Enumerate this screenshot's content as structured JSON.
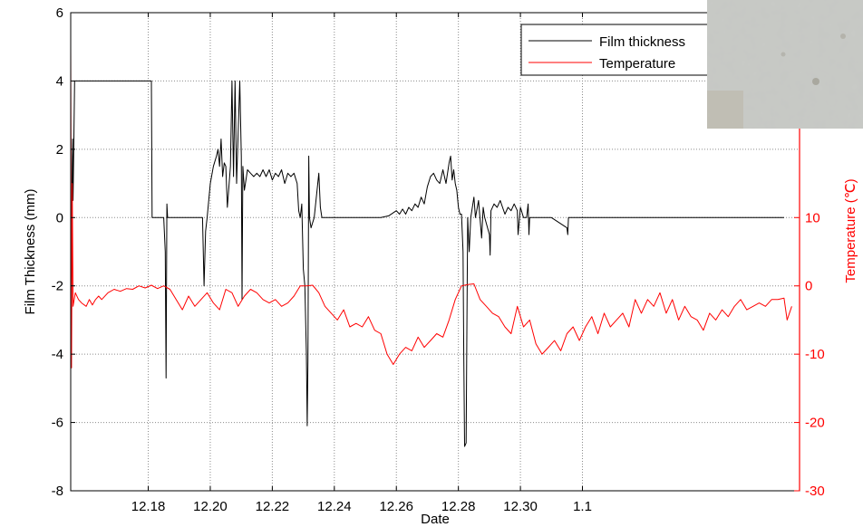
{
  "chart_data": {
    "type": "line",
    "xlabel": "Date",
    "ylabel_left": "Film Thickness (mm)",
    "ylabel_right": "Temperature (℃)",
    "x_ticks": [
      "12.18",
      "12.20",
      "12.22",
      "12.24",
      "12.26",
      "12.28",
      "12.30",
      "1.1"
    ],
    "y_left_ticks": [
      "6",
      "4",
      "2",
      "0",
      "-2",
      "-4",
      "-6",
      "-8"
    ],
    "y_right_ticks": [
      "10",
      "0",
      "-10",
      "-20",
      "-30"
    ],
    "y_left_range": [
      -8,
      6
    ],
    "y_right_range": [
      -30,
      40
    ],
    "grid": true,
    "legend": {
      "position": "top-right",
      "entries": [
        {
          "label": "Film thickness",
          "color": "#000000"
        },
        {
          "label": "Temperature",
          "color": "#ff0000"
        }
      ]
    },
    "series": [
      {
        "name": "Film thickness",
        "color": "#000000",
        "axis": "left",
        "points": [
          [
            0.0,
            0.5
          ],
          [
            0.05,
            -1
          ],
          [
            0.1,
            1.5
          ],
          [
            0.12,
            2.3
          ],
          [
            0.15,
            0.5
          ],
          [
            0.2,
            2.1
          ],
          [
            0.25,
            4
          ],
          [
            0.35,
            4
          ],
          [
            0.4,
            4
          ],
          [
            1.0,
            4
          ],
          [
            2.0,
            4
          ],
          [
            3.0,
            4
          ],
          [
            4.0,
            4
          ],
          [
            5.0,
            4
          ],
          [
            5.2,
            4
          ],
          [
            5.25,
            0
          ],
          [
            6.0,
            0
          ],
          [
            6.1,
            -1
          ],
          [
            6.15,
            -4.7
          ],
          [
            6.2,
            0.4
          ],
          [
            6.25,
            0
          ],
          [
            7.0,
            0
          ],
          [
            8.5,
            0
          ],
          [
            8.6,
            -2
          ],
          [
            8.7,
            -0.4
          ],
          [
            8.8,
            0
          ],
          [
            9.0,
            1
          ],
          [
            9.2,
            1.5
          ],
          [
            9.4,
            1.8
          ],
          [
            9.5,
            2
          ],
          [
            9.6,
            1.5
          ],
          [
            9.7,
            2.3
          ],
          [
            9.8,
            1.2
          ],
          [
            9.9,
            1.6
          ],
          [
            10.0,
            1.5
          ],
          [
            10.1,
            0.3
          ],
          [
            10.3,
            1.5
          ],
          [
            10.4,
            4
          ],
          [
            10.5,
            1.2
          ],
          [
            10.6,
            4
          ],
          [
            10.7,
            1
          ],
          [
            10.9,
            4
          ],
          [
            11.0,
            1.8
          ],
          [
            11.05,
            -2.4
          ],
          [
            11.1,
            1.5
          ],
          [
            11.2,
            0.8
          ],
          [
            11.4,
            1.4
          ],
          [
            11.6,
            1.3
          ],
          [
            11.8,
            1.2
          ],
          [
            12.0,
            1.3
          ],
          [
            12.2,
            1.2
          ],
          [
            12.4,
            1.4
          ],
          [
            12.6,
            1.2
          ],
          [
            12.8,
            1.4
          ],
          [
            13.0,
            1.1
          ],
          [
            13.2,
            1.3
          ],
          [
            13.4,
            1.2
          ],
          [
            13.6,
            1.4
          ],
          [
            13.8,
            1.0
          ],
          [
            14.0,
            1.3
          ],
          [
            14.2,
            1.2
          ],
          [
            14.4,
            1.3
          ],
          [
            14.6,
            1.0
          ],
          [
            14.7,
            0.2
          ],
          [
            14.8,
            0
          ],
          [
            14.9,
            0.4
          ],
          [
            15.0,
            -1.5
          ],
          [
            15.1,
            -2
          ],
          [
            15.2,
            -4
          ],
          [
            15.25,
            -6.1
          ],
          [
            15.3,
            -4.2
          ],
          [
            15.35,
            1.8
          ],
          [
            15.4,
            0
          ],
          [
            15.5,
            -0.3
          ],
          [
            15.7,
            0
          ],
          [
            16.0,
            1.3
          ],
          [
            16.1,
            0.3
          ],
          [
            16.2,
            0
          ],
          [
            17.0,
            0
          ],
          [
            18.0,
            0
          ],
          [
            19.0,
            0
          ],
          [
            20.0,
            0
          ],
          [
            20.5,
            0.05
          ],
          [
            21.0,
            0.2
          ],
          [
            21.2,
            0.1
          ],
          [
            21.4,
            0.25
          ],
          [
            21.6,
            0.1
          ],
          [
            21.8,
            0.3
          ],
          [
            22.0,
            0.2
          ],
          [
            22.2,
            0.4
          ],
          [
            22.4,
            0.3
          ],
          [
            22.6,
            0.6
          ],
          [
            22.8,
            0.4
          ],
          [
            23.0,
            0.9
          ],
          [
            23.2,
            1.2
          ],
          [
            23.4,
            1.3
          ],
          [
            23.6,
            1.1
          ],
          [
            23.8,
            1.0
          ],
          [
            24.0,
            1.4
          ],
          [
            24.2,
            1.0
          ],
          [
            24.4,
            1.6
          ],
          [
            24.5,
            1.8
          ],
          [
            24.6,
            1.1
          ],
          [
            24.7,
            1.4
          ],
          [
            24.8,
            1.0
          ],
          [
            24.9,
            0.8
          ],
          [
            25.0,
            0.3
          ],
          [
            25.1,
            0.1
          ],
          [
            25.2,
            0.1
          ],
          [
            25.3,
            -1
          ],
          [
            25.35,
            -4
          ],
          [
            25.4,
            -6.7
          ],
          [
            25.5,
            -6.6
          ],
          [
            25.55,
            -3
          ],
          [
            25.6,
            0
          ],
          [
            25.7,
            -1
          ],
          [
            25.8,
            0
          ],
          [
            26.0,
            0.6
          ],
          [
            26.1,
            0
          ],
          [
            26.3,
            0.5
          ],
          [
            26.5,
            -0.6
          ],
          [
            26.6,
            0.3
          ],
          [
            26.7,
            0
          ],
          [
            27.0,
            -0.5
          ],
          [
            27.05,
            -1.1
          ],
          [
            27.1,
            0.2
          ],
          [
            27.3,
            0.4
          ],
          [
            27.5,
            0.3
          ],
          [
            27.7,
            0.5
          ],
          [
            28.0,
            0.1
          ],
          [
            28.2,
            0.3
          ],
          [
            28.4,
            0.2
          ],
          [
            28.6,
            0.4
          ],
          [
            28.8,
            0.2
          ],
          [
            28.85,
            -0.5
          ],
          [
            29.0,
            0.3
          ],
          [
            29.2,
            0
          ],
          [
            29.4,
            0
          ],
          [
            29.5,
            0.4
          ],
          [
            29.55,
            -0.5
          ],
          [
            29.6,
            0
          ],
          [
            30.0,
            0
          ],
          [
            31.0,
            0
          ],
          [
            32.0,
            -0.3
          ],
          [
            32.05,
            -0.5
          ],
          [
            32.1,
            0
          ],
          [
            33.0,
            0
          ],
          [
            34.0,
            0
          ],
          [
            35.0,
            0
          ],
          [
            36.0,
            0
          ],
          [
            37.0,
            0
          ],
          [
            38.0,
            0
          ],
          [
            39.0,
            0
          ],
          [
            40.0,
            0
          ],
          [
            41.0,
            0
          ],
          [
            42.0,
            0
          ],
          [
            43.0,
            0
          ],
          [
            44.0,
            0
          ],
          [
            45.0,
            0
          ],
          [
            46.0,
            0
          ]
        ]
      },
      {
        "name": "Temperature",
        "color": "#ff0000",
        "axis": "right",
        "points": [
          [
            0.0,
            35
          ],
          [
            0.05,
            -12
          ],
          [
            0.1,
            15
          ],
          [
            0.15,
            -3
          ],
          [
            0.3,
            -1
          ],
          [
            0.5,
            -2
          ],
          [
            0.7,
            -2.5
          ],
          [
            1.0,
            -3
          ],
          [
            1.2,
            -2
          ],
          [
            1.4,
            -2.8
          ],
          [
            1.6,
            -2
          ],
          [
            1.8,
            -1.5
          ],
          [
            2.0,
            -2
          ],
          [
            2.4,
            -1
          ],
          [
            2.8,
            -0.5
          ],
          [
            3.2,
            -0.8
          ],
          [
            3.6,
            -0.4
          ],
          [
            4.0,
            -0.5
          ],
          [
            4.4,
            0
          ],
          [
            4.8,
            -0.3
          ],
          [
            5.2,
            0.1
          ],
          [
            5.6,
            -0.4
          ],
          [
            6.0,
            0
          ],
          [
            6.4,
            -0.5
          ],
          [
            6.8,
            -2
          ],
          [
            7.2,
            -3.5
          ],
          [
            7.6,
            -1.5
          ],
          [
            8.0,
            -3
          ],
          [
            8.4,
            -2
          ],
          [
            8.8,
            -1
          ],
          [
            9.2,
            -2.5
          ],
          [
            9.6,
            -3.5
          ],
          [
            10.0,
            -0.5
          ],
          [
            10.4,
            -1
          ],
          [
            10.8,
            -3
          ],
          [
            11.2,
            -1.5
          ],
          [
            11.6,
            -0.5
          ],
          [
            12.0,
            -1
          ],
          [
            12.4,
            -2
          ],
          [
            12.8,
            -2.5
          ],
          [
            13.2,
            -2
          ],
          [
            13.6,
            -3
          ],
          [
            14.0,
            -2.5
          ],
          [
            14.4,
            -1.5
          ],
          [
            14.8,
            0
          ],
          [
            15.2,
            0
          ],
          [
            15.6,
            0.1
          ],
          [
            16.0,
            -1
          ],
          [
            16.4,
            -3
          ],
          [
            16.8,
            -4
          ],
          [
            17.2,
            -5
          ],
          [
            17.6,
            -3.5
          ],
          [
            18.0,
            -6
          ],
          [
            18.4,
            -5.5
          ],
          [
            18.8,
            -6
          ],
          [
            19.2,
            -4.5
          ],
          [
            19.6,
            -6.5
          ],
          [
            20.0,
            -7
          ],
          [
            20.4,
            -10
          ],
          [
            20.8,
            -11.5
          ],
          [
            21.2,
            -10
          ],
          [
            21.6,
            -9
          ],
          [
            22.0,
            -9.5
          ],
          [
            22.4,
            -7.5
          ],
          [
            22.8,
            -9
          ],
          [
            23.2,
            -8
          ],
          [
            23.6,
            -7
          ],
          [
            24.0,
            -7.5
          ],
          [
            24.4,
            -5
          ],
          [
            24.8,
            -2
          ],
          [
            25.2,
            0
          ],
          [
            25.6,
            0.2
          ],
          [
            26.0,
            0.3
          ],
          [
            26.4,
            -2
          ],
          [
            26.8,
            -3
          ],
          [
            27.2,
            -4
          ],
          [
            27.6,
            -4.5
          ],
          [
            28.0,
            -6
          ],
          [
            28.4,
            -7
          ],
          [
            28.8,
            -3
          ],
          [
            29.2,
            -6
          ],
          [
            29.6,
            -5
          ],
          [
            30.0,
            -8.5
          ],
          [
            30.4,
            -10
          ],
          [
            30.8,
            -9
          ],
          [
            31.2,
            -8
          ],
          [
            31.6,
            -9.5
          ],
          [
            32.0,
            -7
          ],
          [
            32.4,
            -6
          ],
          [
            32.8,
            -8
          ],
          [
            33.2,
            -6
          ],
          [
            33.6,
            -4.5
          ],
          [
            34.0,
            -7
          ],
          [
            34.4,
            -4
          ],
          [
            34.8,
            -6
          ],
          [
            35.2,
            -5
          ],
          [
            35.6,
            -4
          ],
          [
            36.0,
            -6
          ],
          [
            36.4,
            -2
          ],
          [
            36.8,
            -4
          ],
          [
            37.2,
            -2
          ],
          [
            37.6,
            -3
          ],
          [
            38.0,
            -1
          ],
          [
            38.4,
            -4
          ],
          [
            38.8,
            -2
          ],
          [
            39.2,
            -5
          ],
          [
            39.6,
            -3
          ],
          [
            40.0,
            -4.5
          ],
          [
            40.4,
            -5
          ],
          [
            40.8,
            -6.5
          ],
          [
            41.2,
            -4
          ],
          [
            41.6,
            -5
          ],
          [
            42.0,
            -3.5
          ],
          [
            42.4,
            -4.5
          ],
          [
            42.8,
            -3
          ],
          [
            43.2,
            -2
          ],
          [
            43.6,
            -3.5
          ],
          [
            44.0,
            -3
          ],
          [
            44.4,
            -2.5
          ],
          [
            44.8,
            -3
          ],
          [
            45.2,
            -2
          ],
          [
            45.6,
            -2
          ],
          [
            46.0,
            -1.8
          ],
          [
            46.2,
            -5
          ],
          [
            46.5,
            -3
          ]
        ]
      }
    ]
  }
}
